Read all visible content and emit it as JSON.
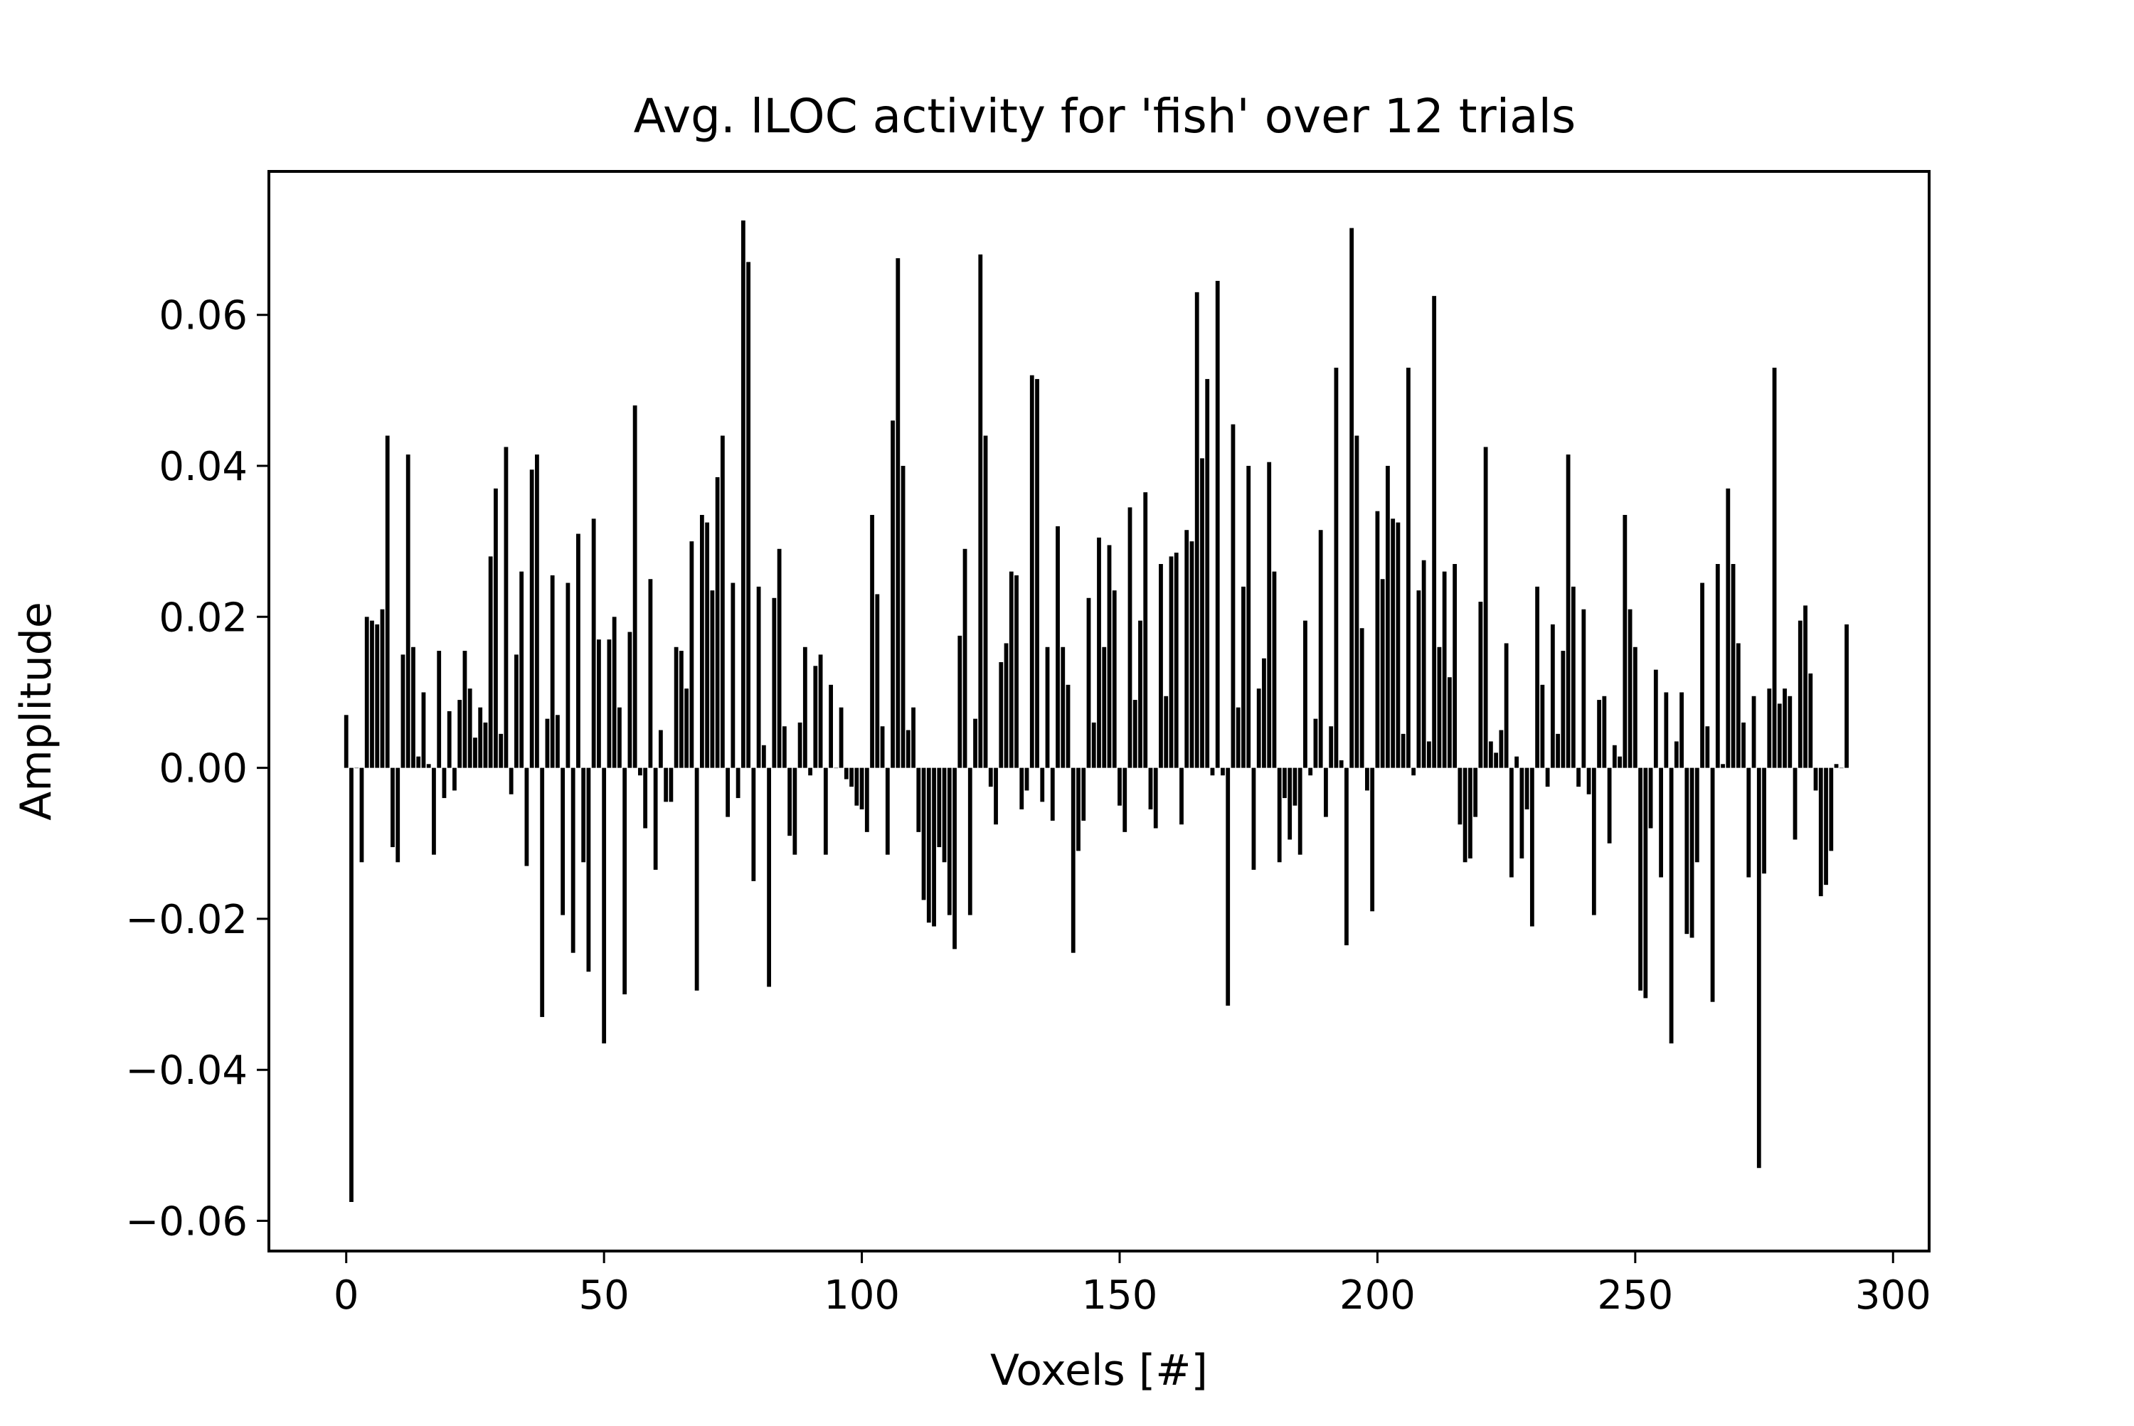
{
  "chart_data": {
    "type": "bar",
    "title": "Avg. lLOC activity for 'fish' over 12 trials",
    "xlabel": "Voxels [#]",
    "ylabel": "Amplitude",
    "xlim": [
      -15,
      307
    ],
    "ylim": [
      -0.064,
      0.079
    ],
    "xticks": [
      0,
      50,
      100,
      150,
      200,
      250,
      300
    ],
    "xtick_labels": [
      "0",
      "50",
      "100",
      "150",
      "200",
      "250",
      "300"
    ],
    "yticks": [
      -0.06,
      -0.04,
      -0.02,
      0.0,
      0.02,
      0.04,
      0.06
    ],
    "ytick_labels": [
      "−0.06",
      "−0.04",
      "−0.02",
      "0.00",
      "0.02",
      "0.04",
      "0.06"
    ],
    "grid": false,
    "bar_color": "#000000",
    "x_start": 0,
    "values": [
      0.007,
      -0.0575,
      0.0,
      -0.0125,
      0.02,
      0.0195,
      0.019,
      0.021,
      0.044,
      -0.0105,
      -0.0125,
      0.015,
      0.0415,
      0.016,
      0.0015,
      0.01,
      0.0005,
      -0.0115,
      0.0155,
      -0.004,
      0.0075,
      -0.003,
      0.009,
      0.0155,
      0.0105,
      0.004,
      0.008,
      0.006,
      0.028,
      0.037,
      0.0045,
      0.0425,
      -0.0035,
      0.015,
      0.026,
      -0.013,
      0.0395,
      0.0415,
      -0.033,
      0.0065,
      0.0255,
      0.007,
      -0.0195,
      0.0245,
      -0.0245,
      0.031,
      -0.0125,
      -0.027,
      0.033,
      0.017,
      -0.0365,
      0.017,
      0.02,
      0.008,
      -0.03,
      0.018,
      0.048,
      -0.001,
      -0.008,
      0.025,
      -0.0135,
      0.005,
      -0.0045,
      -0.0045,
      0.016,
      0.0155,
      0.0105,
      0.03,
      -0.0295,
      0.0335,
      0.0325,
      0.0235,
      0.0385,
      0.044,
      -0.0065,
      0.0245,
      -0.004,
      0.0725,
      0.067,
      -0.015,
      0.024,
      0.003,
      -0.029,
      0.0225,
      0.029,
      0.0055,
      -0.009,
      -0.0115,
      0.006,
      0.016,
      -0.001,
      0.0135,
      0.015,
      -0.0115,
      0.011,
      0.0,
      0.008,
      -0.0015,
      -0.0025,
      -0.005,
      -0.0055,
      -0.0085,
      0.0335,
      0.023,
      0.0055,
      -0.0115,
      0.046,
      0.0675,
      0.04,
      0.005,
      0.008,
      -0.0085,
      -0.0175,
      -0.0205,
      -0.021,
      -0.0105,
      -0.0125,
      -0.0195,
      -0.024,
      0.0175,
      0.029,
      -0.0195,
      0.0065,
      0.068,
      0.044,
      -0.0025,
      -0.0075,
      0.014,
      0.0165,
      0.026,
      0.0255,
      -0.0055,
      -0.003,
      0.052,
      0.0515,
      -0.0045,
      0.016,
      -0.007,
      0.032,
      0.016,
      0.011,
      -0.0245,
      -0.011,
      -0.007,
      0.0225,
      0.006,
      0.0305,
      0.016,
      0.0295,
      0.0235,
      -0.005,
      -0.0085,
      0.0345,
      0.009,
      0.0195,
      0.0365,
      -0.0055,
      -0.008,
      0.027,
      0.0095,
      0.028,
      0.0285,
      -0.0075,
      0.0315,
      0.03,
      0.063,
      0.041,
      0.0515,
      -0.001,
      0.0645,
      -0.001,
      -0.0315,
      0.0455,
      0.008,
      0.024,
      0.04,
      -0.0135,
      0.0105,
      0.0145,
      0.0405,
      0.026,
      -0.0125,
      -0.004,
      -0.0095,
      -0.005,
      -0.0115,
      0.0195,
      -0.001,
      0.0065,
      0.0315,
      -0.0065,
      0.0055,
      0.053,
      0.001,
      -0.0235,
      0.0715,
      0.044,
      0.0185,
      -0.003,
      -0.019,
      0.034,
      0.025,
      0.04,
      0.033,
      0.0325,
      0.0045,
      0.053,
      -0.001,
      0.0235,
      0.0275,
      0.0035,
      0.0625,
      0.016,
      0.026,
      0.012,
      0.027,
      -0.0075,
      -0.0125,
      -0.012,
      -0.0065,
      0.022,
      0.0425,
      0.0035,
      0.002,
      0.005,
      0.0165,
      -0.0145,
      0.0015,
      -0.012,
      -0.0055,
      -0.021,
      0.024,
      0.011,
      -0.0025,
      0.019,
      0.0045,
      0.0155,
      0.0415,
      0.024,
      -0.0025,
      0.021,
      -0.0035,
      -0.0195,
      0.009,
      0.0095,
      -0.01,
      0.003,
      0.0015,
      0.0335,
      0.021,
      0.016,
      -0.0295,
      -0.0305,
      -0.008,
      0.013,
      -0.0145,
      0.01,
      -0.0365,
      0.0035,
      0.01,
      -0.022,
      -0.0225,
      -0.0125,
      0.0245,
      0.0055,
      -0.031,
      0.027,
      0.0005,
      0.037,
      0.027,
      0.0165,
      0.006,
      -0.0145,
      0.0095,
      -0.053,
      -0.014,
      0.0105,
      0.053,
      0.0085,
      0.0105,
      0.0095,
      -0.0095,
      0.0195,
      0.0215,
      0.0125,
      -0.003,
      -0.017,
      -0.0155,
      -0.011,
      0.0005,
      0.0,
      0.019
    ]
  }
}
